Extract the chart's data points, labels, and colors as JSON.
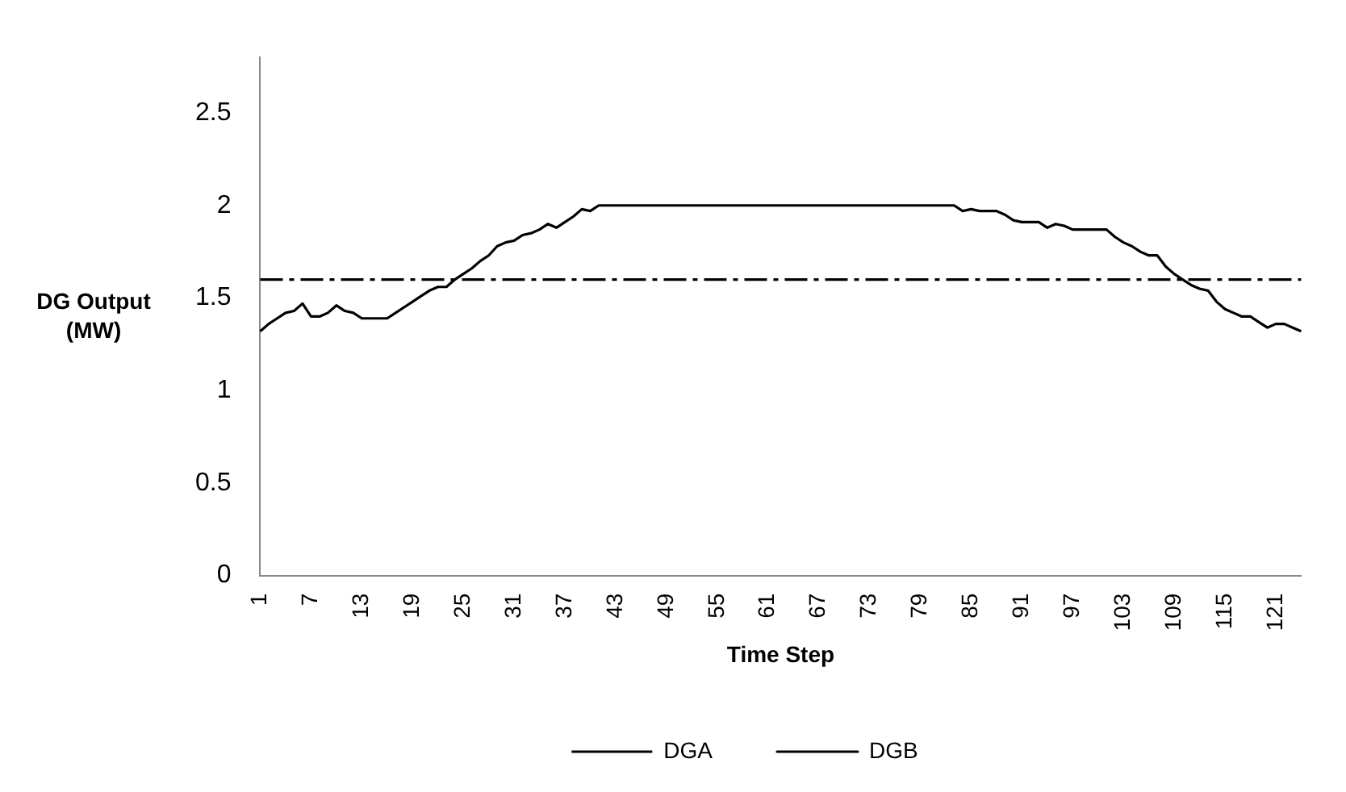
{
  "chart_data": {
    "type": "line",
    "xlabel": "Time Step",
    "ylabel": "DG Output (MW)",
    "categories": [
      "1",
      null,
      null,
      null,
      null,
      null,
      "7",
      null,
      null,
      null,
      null,
      null,
      "13",
      null,
      null,
      null,
      null,
      null,
      "19",
      null,
      null,
      null,
      null,
      null,
      "25",
      null,
      null,
      null,
      null,
      null,
      "31",
      null,
      null,
      null,
      null,
      null,
      "37",
      null,
      null,
      null,
      null,
      null,
      "43",
      null,
      null,
      null,
      null,
      null,
      "49",
      null,
      null,
      null,
      null,
      null,
      "55",
      null,
      null,
      null,
      null,
      null,
      "61",
      null,
      null,
      null,
      null,
      null,
      "67",
      null,
      null,
      null,
      null,
      null,
      "73",
      null,
      null,
      null,
      null,
      null,
      "79",
      null,
      null,
      null,
      null,
      null,
      "85",
      null,
      null,
      null,
      null,
      null,
      "91",
      null,
      null,
      null,
      null,
      null,
      "97",
      null,
      null,
      null,
      null,
      null,
      "103",
      null,
      null,
      null,
      null,
      null,
      "109",
      null,
      null,
      null,
      null,
      null,
      "115",
      null,
      null,
      null,
      null,
      null,
      "121",
      null,
      null,
      null
    ],
    "series": [
      {
        "name": "DGA",
        "color": "#000000",
        "line_style": "dashed",
        "values": [
          1.6,
          1.6,
          1.6,
          1.6,
          1.6,
          1.6,
          1.6,
          1.6,
          1.6,
          1.6,
          1.6,
          1.6,
          1.6,
          1.6,
          1.6,
          1.6,
          1.6,
          1.6,
          1.6,
          1.6,
          1.6,
          1.6,
          1.6,
          1.6,
          1.6,
          1.6,
          1.6,
          1.6,
          1.6,
          1.6,
          1.6,
          1.6,
          1.6,
          1.6,
          1.6,
          1.6,
          1.6,
          1.6,
          1.6,
          1.6,
          1.6,
          1.6,
          1.6,
          1.6,
          1.6,
          1.6,
          1.6,
          1.6,
          1.6,
          1.6,
          1.6,
          1.6,
          1.6,
          1.6,
          1.6,
          1.6,
          1.6,
          1.6,
          1.6,
          1.6,
          1.6,
          1.6,
          1.6,
          1.6,
          1.6,
          1.6,
          1.6,
          1.6,
          1.6,
          1.6,
          1.6,
          1.6,
          1.6,
          1.6,
          1.6,
          1.6,
          1.6,
          1.6,
          1.6,
          1.6,
          1.6,
          1.6,
          1.6,
          1.6,
          1.6,
          1.6,
          1.6,
          1.6,
          1.6,
          1.6,
          1.6,
          1.6,
          1.6,
          1.6,
          1.6,
          1.6,
          1.6,
          1.6,
          1.6,
          1.6,
          1.6,
          1.6,
          1.6,
          1.6,
          1.6,
          1.6,
          1.6,
          1.6,
          1.6,
          1.6,
          1.6,
          1.6,
          1.6,
          1.6,
          1.6,
          1.6,
          1.6,
          1.6,
          1.6,
          1.6,
          1.6,
          1.6,
          1.6,
          1.6
        ]
      },
      {
        "name": "DGB",
        "color": "#000000",
        "line_style": "solid",
        "values": [
          1.32,
          1.36,
          1.39,
          1.42,
          1.43,
          1.47,
          1.4,
          1.4,
          1.42,
          1.46,
          1.43,
          1.42,
          1.39,
          1.39,
          1.39,
          1.39,
          1.42,
          1.45,
          1.48,
          1.51,
          1.54,
          1.56,
          1.56,
          1.6,
          1.63,
          1.66,
          1.7,
          1.73,
          1.78,
          1.8,
          1.81,
          1.84,
          1.85,
          1.87,
          1.9,
          1.88,
          1.91,
          1.94,
          1.98,
          1.97,
          2,
          2,
          2,
          2,
          2,
          2,
          2,
          2,
          2,
          2,
          2,
          2,
          2,
          2,
          2,
          2,
          2,
          2,
          2,
          2,
          2,
          2,
          2,
          2,
          2,
          2,
          2,
          2,
          2,
          2,
          2,
          2,
          2,
          2,
          2,
          2,
          2,
          2,
          2,
          2,
          2,
          2,
          2,
          1.97,
          1.98,
          1.97,
          1.97,
          1.97,
          1.95,
          1.92,
          1.91,
          1.91,
          1.91,
          1.88,
          1.9,
          1.89,
          1.87,
          1.87,
          1.87,
          1.87,
          1.87,
          1.83,
          1.8,
          1.78,
          1.75,
          1.73,
          1.73,
          1.67,
          1.63,
          1.6,
          1.57,
          1.55,
          1.54,
          1.48,
          1.44,
          1.42,
          1.4,
          1.4,
          1.37,
          1.34,
          1.36,
          1.36,
          1.34,
          1.32
        ]
      }
    ],
    "ylim": [
      0,
      2.8
    ],
    "yticks": [
      0,
      0.5,
      1,
      1.5,
      2,
      2.5
    ],
    "grid": false,
    "legend": "bottom",
    "marker": "none"
  }
}
